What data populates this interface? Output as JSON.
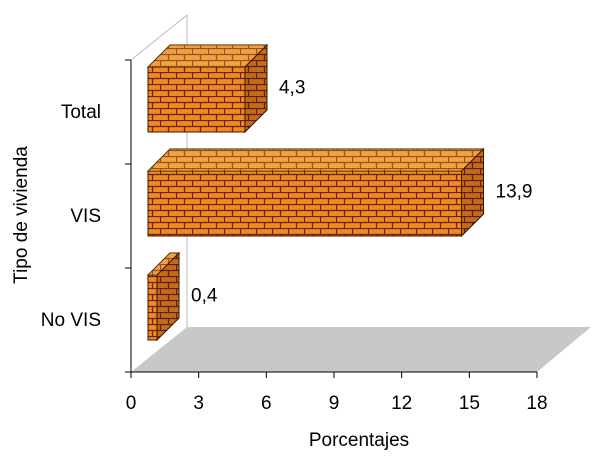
{
  "chart_data": {
    "type": "bar",
    "orientation": "horizontal",
    "x_label": "Porcentajes",
    "y_label": "Tipo de vivienda",
    "categories": [
      "Total",
      "VIS",
      "No VIS"
    ],
    "values": [
      4.3,
      13.9,
      0.4
    ],
    "value_labels": [
      "4,3",
      "13,9",
      "0,4"
    ],
    "color": "#f08a1c",
    "xlim": [
      0,
      18
    ],
    "xticks": [
      0,
      3,
      6,
      9,
      12,
      15,
      18
    ]
  }
}
